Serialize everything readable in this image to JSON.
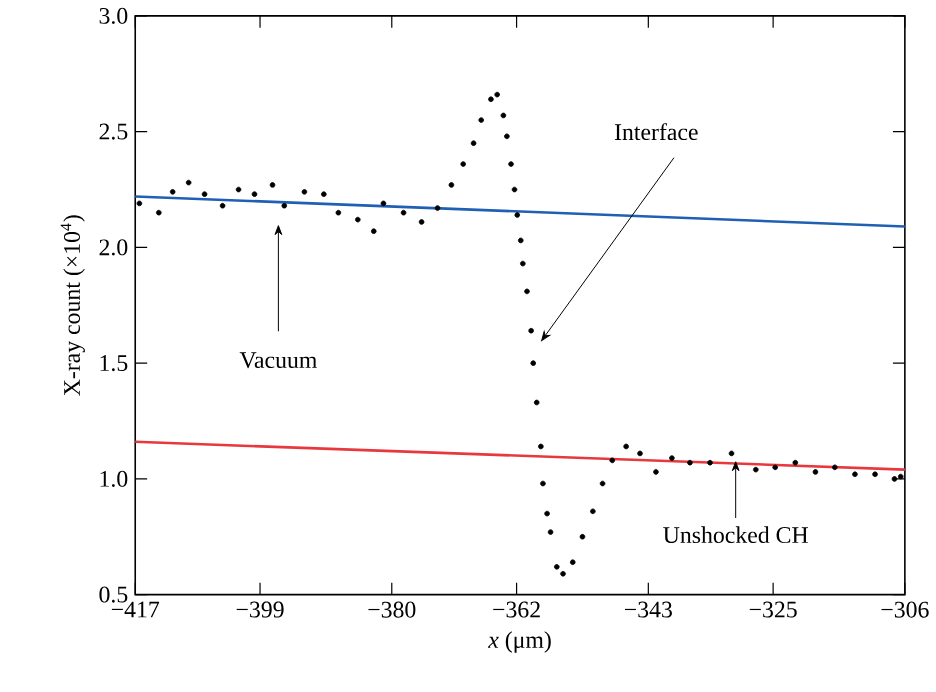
{
  "chart_data": {
    "type": "scatter",
    "xlabel": "*x* (μm)",
    "ylabel": "X-ray count (×10$^{4}$)",
    "xlim": [
      -417,
      -306
    ],
    "ylim": [
      0.5,
      3.0
    ],
    "xticks": [
      {
        "value": -417,
        "label": "−417"
      },
      {
        "value": -399,
        "label": "−399"
      },
      {
        "value": -380,
        "label": "−380"
      },
      {
        "value": -362,
        "label": "−362"
      },
      {
        "value": -343,
        "label": "−343"
      },
      {
        "value": -325,
        "label": "−325"
      },
      {
        "value": -306,
        "label": "−306"
      }
    ],
    "yticks": [
      0.5,
      {
        "value": 1.0,
        "label": "1.0"
      },
      1.5,
      {
        "value": 2.0,
        "label": "2.0"
      },
      2.5,
      {
        "value": 3.0,
        "label": "3.0"
      }
    ],
    "grid": false,
    "series": [
      {
        "color": "#000000",
        "marker": "circle",
        "x": [
          -416.4,
          -413.6,
          -411.6,
          -409.3,
          -407.0,
          -404.4,
          -402.1,
          -399.8,
          -397.2,
          -395.5,
          -392.6,
          -389.8,
          -387.7,
          -384.9,
          -382.6,
          -381.2,
          -378.3,
          -375.7,
          -373.4,
          -371.4,
          -369.7,
          -368.2,
          -367.1,
          -365.7,
          -364.8,
          -363.9,
          -363.4,
          -362.8,
          -362.3,
          -361.9,
          -361.4,
          -361.1,
          -360.5,
          -359.9,
          -359.6,
          -359.1,
          -358.5,
          -358.2,
          -357.6,
          -357.1,
          -356.2,
          -355.3,
          -353.9,
          -352.5,
          -351.0,
          -349.6,
          -348.2,
          -346.2,
          -344.2,
          -341.9,
          -339.6,
          -337.0,
          -334.1,
          -331.0,
          -327.5,
          -324.7,
          -321.8,
          -318.9,
          -316.1,
          -313.2,
          -310.3,
          -307.5,
          -306.6
        ],
        "values": [
          2.19,
          2.15,
          2.24,
          2.28,
          2.23,
          2.18,
          2.25,
          2.23,
          2.27,
          2.18,
          2.24,
          2.23,
          2.15,
          2.12,
          2.07,
          2.19,
          2.15,
          2.11,
          2.17,
          2.27,
          2.36,
          2.45,
          2.55,
          2.64,
          2.66,
          2.57,
          2.48,
          2.36,
          2.25,
          2.14,
          2.03,
          1.93,
          1.81,
          1.64,
          1.5,
          1.33,
          1.14,
          0.98,
          0.85,
          0.77,
          0.62,
          0.59,
          0.64,
          0.75,
          0.86,
          0.98,
          1.08,
          1.14,
          1.11,
          1.03,
          1.09,
          1.07,
          1.07,
          1.11,
          1.04,
          1.05,
          1.07,
          1.03,
          1.05,
          1.02,
          1.02,
          1.0,
          1.01
        ]
      },
      {
        "type": "line",
        "color": "#1f5fb4",
        "marker": "none",
        "x": [
          -417,
          -306
        ],
        "values": [
          2.22,
          2.09
        ]
      },
      {
        "type": "line",
        "color": "#e8383d",
        "marker": "none",
        "x": [
          -417,
          -306
        ],
        "values": [
          1.16,
          1.04
        ]
      }
    ],
    "annotations": [
      "Vacuum",
      "Interface",
      {
        "text": "Unshocked CH",
        "x": -330.4,
        "y": 1.08
      }
    ]
  }
}
